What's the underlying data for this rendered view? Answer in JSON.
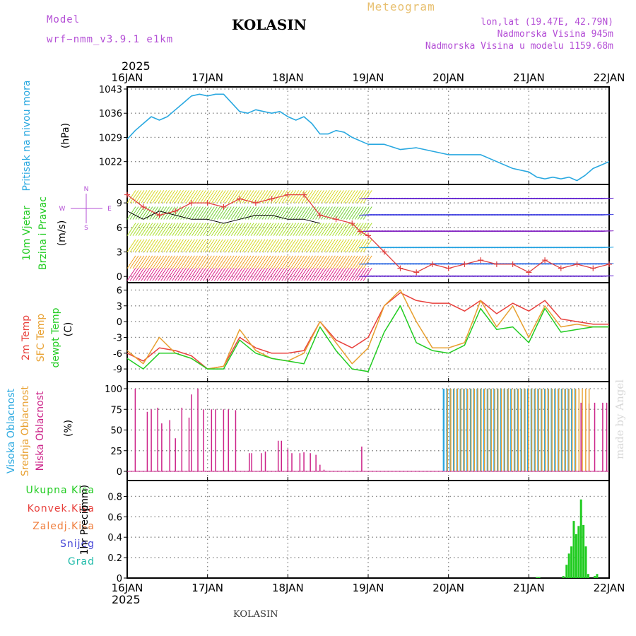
{
  "header": {
    "model_label": "Model",
    "model_name": "wrf−nmm_v3.9.1  e1km",
    "title": "KOLASIN",
    "meteogram": "Meteogram",
    "lonlat": "lon,lat (19.47E, 42.79N)",
    "altitude": "Nadmorska Visina 945m",
    "model_altitude": "Nadmorska Visina u modelu 1159.68m",
    "year_top": "2025",
    "year_bottom": "2025",
    "footer": "KOLASIN",
    "watermark": "made by Angel"
  },
  "colors": {
    "pressure": "#29a8e0",
    "temp2m": "#e8403c",
    "sfc": "#e8a030",
    "dewpt": "#22cc22",
    "high_cloud": "#29a8e0",
    "mid_cloud": "#e8a030",
    "low_cloud": "#cc2288",
    "total_precip": "#22cc22",
    "wind_speed_obs": "#e04040"
  },
  "precip_legend": {
    "ukupna": "Ukupna Kisa",
    "konvek": "Konvek.Kisa",
    "zaledj": "Zaledj.Kisa",
    "snijeg": "Snijeg",
    "grad": "Grad"
  },
  "wind_compass": {
    "n": "N",
    "w": "W",
    "e": "E",
    "s": "S"
  },
  "chart_data": [
    {
      "type": "line",
      "panel": "pressure",
      "ylabel_outer": "Pritisak na nivou mora",
      "ylabel_inner": "(hPa)",
      "x_ticks": [
        "16JAN",
        "17JAN",
        "18JAN",
        "19JAN",
        "20JAN",
        "21JAN",
        "22JAN"
      ],
      "yticks": [
        1022,
        1029,
        1036,
        1043
      ],
      "ylim": [
        1016,
        1043
      ],
      "x_days": [
        0,
        0.1,
        0.2,
        0.3,
        0.4,
        0.5,
        0.6,
        0.7,
        0.8,
        0.9,
        1.0,
        1.1,
        1.2,
        1.3,
        1.4,
        1.5,
        1.6,
        1.7,
        1.8,
        1.9,
        2.0,
        2.1,
        2.2,
        2.3,
        2.4,
        2.5,
        2.6,
        2.7,
        2.8,
        2.9,
        3.0,
        3.2,
        3.4,
        3.6,
        3.8,
        4.0,
        4.2,
        4.4,
        4.6,
        4.8,
        5.0,
        5.1,
        5.2,
        5.3,
        5.4,
        5.5,
        5.6,
        5.7,
        5.8,
        5.9,
        6.0
      ],
      "series": [
        {
          "values": [
            1028.5,
            1031,
            1033,
            1035,
            1034,
            1035,
            1037,
            1039,
            1041,
            1041.5,
            1041,
            1041.5,
            1041.5,
            1039,
            1036.5,
            1036,
            1037,
            1036.5,
            1036,
            1036.5,
            1035,
            1034,
            1035,
            1033,
            1030,
            1030,
            1031,
            1030.5,
            1029,
            1028,
            1027,
            1027,
            1025.5,
            1026,
            1025,
            1024,
            1024,
            1024,
            1022,
            1020,
            1019,
            1017.5,
            1017,
            1017.5,
            1017,
            1017.5,
            1016.5,
            1018,
            1020,
            1021,
            1022
          ]
        }
      ]
    },
    {
      "type": "line",
      "panel": "wind",
      "ylabel_outer": "10m Vjetar",
      "ylabel_outer2": "Brzina i Pravac",
      "ylabel_inner": "(m/s)",
      "yticks": [
        0,
        3,
        6,
        9
      ],
      "ylim": [
        -0.5,
        11
      ],
      "x_days": [
        0,
        0.2,
        0.4,
        0.6,
        0.8,
        1.0,
        1.2,
        1.4,
        1.6,
        1.8,
        2.0,
        2.2,
        2.4,
        2.6,
        2.8,
        2.9,
        3.0,
        3.2,
        3.4,
        3.6,
        3.8,
        4.0,
        4.2,
        4.4,
        4.6,
        4.8,
        5.0,
        5.2,
        5.4,
        5.6,
        5.8,
        6.0
      ],
      "series": [
        {
          "values": [
            10,
            8.5,
            7.5,
            8,
            9,
            9,
            8.5,
            9.5,
            9,
            9.5,
            10,
            10,
            7.5,
            7,
            6.5,
            5.5,
            5,
            3,
            1,
            0.5,
            1.5,
            1,
            1.5,
            2,
            1.5,
            1.5,
            0.5,
            2,
            1,
            1.5,
            1,
            1.5
          ]
        },
        {
          "values": [
            8,
            7,
            8,
            7.5,
            7,
            7,
            6.5,
            7,
            7.5,
            7.5,
            7,
            7,
            6.5
          ]
        }
      ]
    },
    {
      "type": "line",
      "panel": "temperature",
      "ylabel_outer": "2m Temp",
      "ylabel_outer2": "SFC Temp",
      "ylabel_outer3": "dewpt Temp",
      "ylabel_inner": "(C)",
      "yticks": [
        -9,
        -6,
        -3,
        0,
        3,
        6
      ],
      "ylim": [
        -11,
        7
      ],
      "x_days": [
        0,
        0.2,
        0.4,
        0.6,
        0.8,
        1.0,
        1.2,
        1.4,
        1.6,
        1.8,
        2.0,
        2.2,
        2.4,
        2.6,
        2.8,
        3.0,
        3.2,
        3.4,
        3.6,
        3.8,
        4.0,
        4.2,
        4.4,
        4.6,
        4.8,
        5.0,
        5.2,
        5.4,
        5.6,
        5.8,
        6.0
      ],
      "series": [
        {
          "name": "2m Temp",
          "values": [
            -6,
            -7.5,
            -5,
            -5.5,
            -6.5,
            -9,
            -8.5,
            -3,
            -5,
            -6,
            -6,
            -5.5,
            0,
            -3.5,
            -5,
            -3,
            3,
            5.5,
            4,
            3.5,
            3.5,
            2,
            4,
            1.5,
            3.5,
            2,
            4,
            0.5,
            0,
            -0.5,
            -0.5
          ]
        },
        {
          "name": "SFC Temp",
          "values": [
            -5.5,
            -8,
            -3,
            -6,
            -7,
            -9,
            -8.5,
            -1.5,
            -5.5,
            -7,
            -7.5,
            -6,
            0,
            -4,
            -8,
            -5,
            3,
            6,
            0,
            -5,
            -5,
            -4,
            4,
            -1,
            3,
            -3,
            3,
            -1,
            -0.5,
            -1,
            -1
          ]
        },
        {
          "name": "dewpt Temp",
          "values": [
            -7,
            -9,
            -6,
            -6,
            -7,
            -9,
            -9,
            -3.5,
            -6,
            -7,
            -7.5,
            -8,
            -1,
            -5.5,
            -9,
            -9.5,
            -2,
            3,
            -4,
            -5.5,
            -6,
            -4.5,
            2.5,
            -1.5,
            -1,
            -4,
            2.5,
            -2,
            -1.5,
            -1,
            -1
          ]
        }
      ]
    },
    {
      "type": "bar",
      "panel": "clouds",
      "ylabel_outer": "Visoka Oblacnost",
      "ylabel_outer2": "Srednja Oblacnost",
      "ylabel_outer3": "Niska Oblacnost",
      "ylabel_inner": "(%)",
      "yticks": [
        0,
        25,
        50,
        75,
        100
      ],
      "ylim": [
        0,
        100
      ],
      "low_cloud": {
        "x_days": [
          0.1,
          0.25,
          0.3,
          0.38,
          0.43,
          0.53,
          0.6,
          0.68,
          0.77,
          0.8,
          0.88,
          0.95,
          1.05,
          1.1,
          1.2,
          1.26,
          1.35,
          1.52,
          1.55,
          1.67,
          1.72,
          1.88,
          1.92,
          2.0,
          2.05,
          2.15,
          2.2,
          2.28,
          2.35,
          2.4,
          2.45,
          2.92
        ],
        "values": [
          100,
          72,
          75,
          77,
          58,
          62,
          40,
          77,
          65,
          93,
          100,
          75,
          75,
          75,
          75,
          75,
          74,
          22,
          22,
          22,
          24,
          37,
          37,
          27,
          22,
          22,
          23,
          22,
          20,
          8,
          2,
          30
        ]
      },
      "high_cloud_range": [
        3.94,
        5.6
      ],
      "high_cloud_value": 100,
      "mid_cloud_range": [
        3.96,
        5.75
      ],
      "mid_cloud_value": 100,
      "late_low_cloud": {
        "x_days": [
          5.65,
          5.75,
          5.82,
          5.92,
          5.97
        ],
        "values": [
          83,
          82,
          83,
          83,
          83
        ]
      }
    },
    {
      "type": "bar",
      "panel": "precipitation",
      "ylabel_outer": "1hr Precip",
      "ylabel_inner": "(mm)",
      "yticks": [
        0,
        0.2,
        0.4,
        0.6,
        0.8
      ],
      "ylim": [
        0,
        0.9
      ],
      "x_days": [
        5.1,
        5.13,
        5.43,
        5.47,
        5.5,
        5.53,
        5.56,
        5.59,
        5.62,
        5.65,
        5.68,
        5.71,
        5.74,
        5.82,
        5.85
      ],
      "values": [
        0.01,
        0.01,
        0.02,
        0.13,
        0.24,
        0.31,
        0.56,
        0.43,
        0.51,
        0.77,
        0.52,
        0.31,
        0.04,
        0.02,
        0.04
      ]
    }
  ]
}
